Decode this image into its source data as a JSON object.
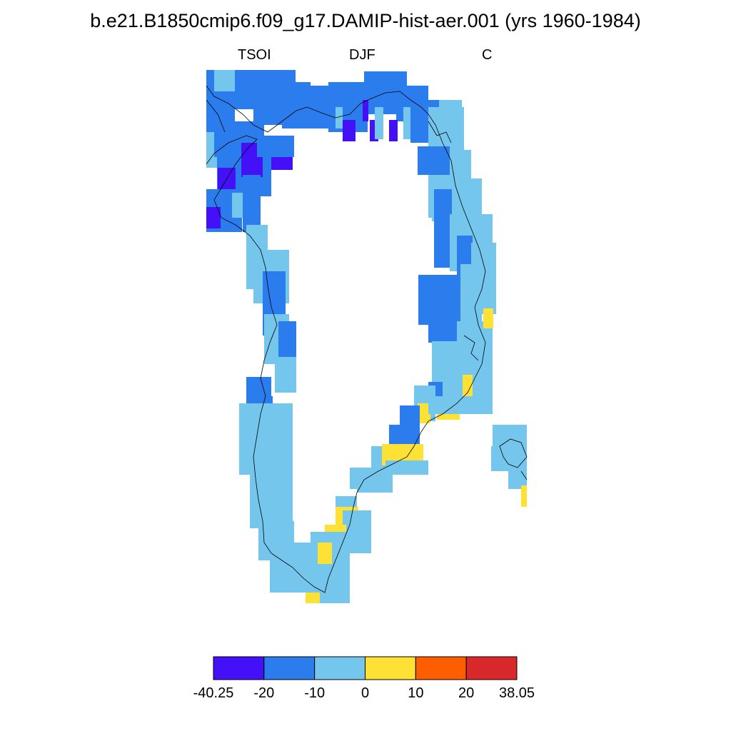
{
  "title": "b.e21.B1850cmip6.f09_g17.DAMIP-hist-aer.001 (yrs 1960-1984)",
  "subtitle_left": "TSOI",
  "subtitle_center": "DJF",
  "subtitle_right": "C",
  "map": {
    "region": "Greenland",
    "colorbar": {
      "labels": [
        "-40.25",
        "-20",
        "-10",
        "0",
        "10",
        "20",
        "38.05"
      ],
      "colors": [
        "#4410f8",
        "#2b7ded",
        "#75c6ed",
        "#fde135",
        "#fe5d00",
        "#d8282b"
      ]
    }
  }
}
